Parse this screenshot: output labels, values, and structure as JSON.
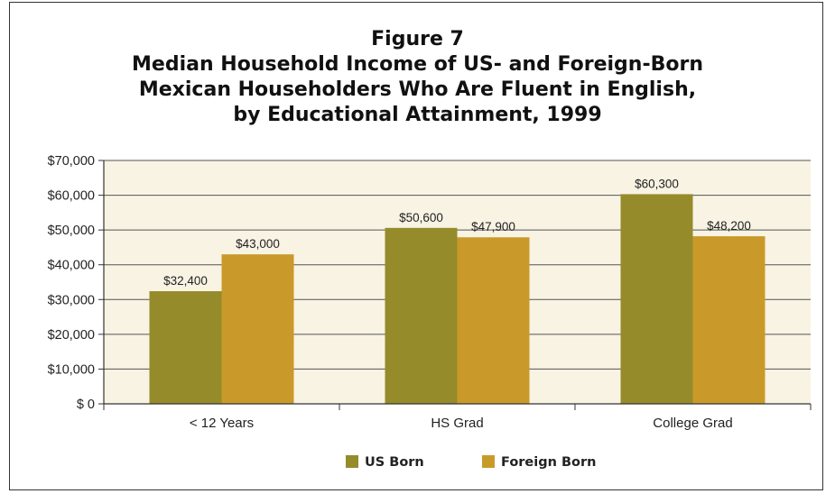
{
  "chart_data": {
    "type": "bar",
    "title": [
      "Figure 7",
      "Median Household Income of US- and Foreign-Born",
      "Mexican Householders Who Are Fluent in English,",
      "by Educational Attainment, 1999"
    ],
    "categories": [
      "< 12 Years",
      "HS Grad",
      "College Grad"
    ],
    "series": [
      {
        "name": "US Born",
        "color": "#968b2b",
        "values": [
          32400,
          50600,
          60300
        ],
        "labels": [
          "$32,400",
          "$50,600",
          "$60,300"
        ]
      },
      {
        "name": "Foreign Born",
        "color": "#c99a2a",
        "values": [
          43000,
          47900,
          48200
        ],
        "labels": [
          "$43,000",
          "$47,900",
          "$48,200"
        ]
      }
    ],
    "ylim": [
      0,
      70000
    ],
    "yticks": [
      0,
      10000,
      20000,
      30000,
      40000,
      50000,
      60000,
      70000
    ],
    "ytick_labels": [
      "$ 0",
      "$10,000",
      "$20,000",
      "$30,000",
      "$40,000",
      "$50,000",
      "$60,000",
      "$70,000"
    ],
    "xlabel": "",
    "ylabel": "",
    "grid": true,
    "plot_background": "#f8f3e3",
    "legend_position": "bottom"
  }
}
